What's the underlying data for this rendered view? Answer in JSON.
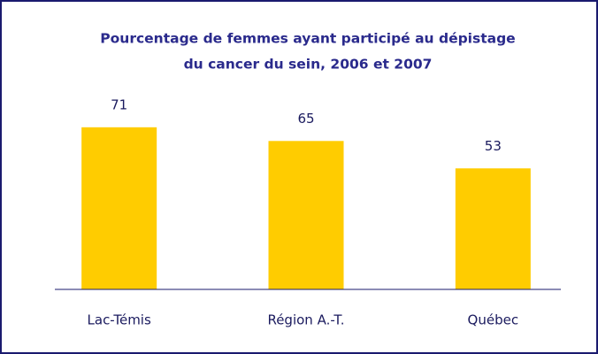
{
  "chart_data": {
    "type": "bar",
    "title": [
      "Pourcentage de femmes ayant participé au dépistage",
      "du cancer du sein, 2006 et 2007"
    ],
    "categories": [
      "Lac-Témis",
      "Région A.-T.",
      "Québec"
    ],
    "values": [
      71,
      65,
      53
    ],
    "color": "#ffcc00"
  }
}
